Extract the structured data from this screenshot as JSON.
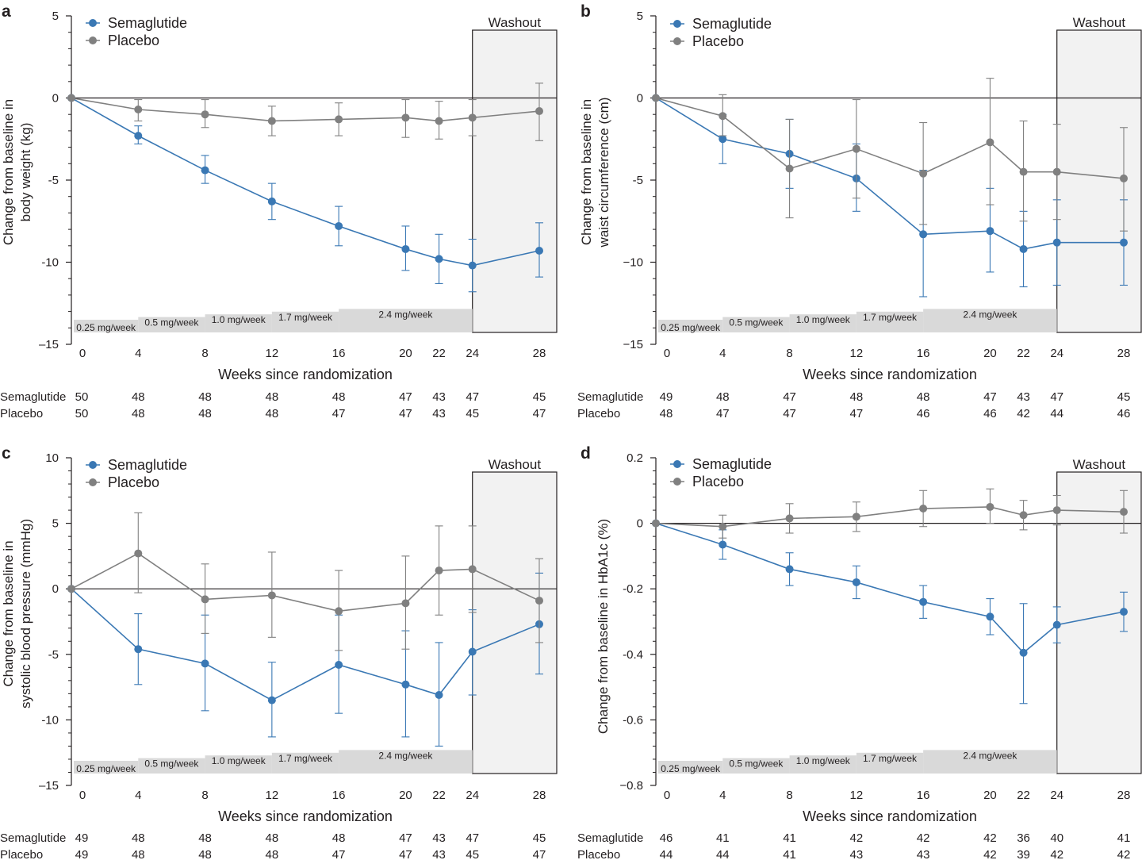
{
  "chart_data": [
    {
      "panel": "a",
      "type": "line",
      "ylabel": [
        "Change from baseline in",
        "body weight (kg)"
      ],
      "xlabel": "Weeks since randomization",
      "ylim": [
        -15,
        5
      ],
      "yticks": [
        5,
        0,
        -5,
        -10,
        -15
      ],
      "ytick_labels": [
        "5",
        "0",
        "-5",
        "-10",
        "–15"
      ],
      "x": [
        0,
        4,
        8,
        12,
        16,
        20,
        22,
        24,
        28
      ],
      "xtick_labels": [
        "0",
        "4",
        "8",
        "12",
        "16",
        "20",
        "22",
        "24",
        "28"
      ],
      "washout_label": "Washout",
      "washout_range": [
        24,
        28
      ],
      "dose_bands": [
        {
          "label": "0.25 mg/week",
          "from": 0,
          "to": 4
        },
        {
          "label": "0.5 mg/week",
          "from": 4,
          "to": 8
        },
        {
          "label": "1.0 mg/week",
          "from": 8,
          "to": 12
        },
        {
          "label": "1.7 mg/week",
          "from": 12,
          "to": 16
        },
        {
          "label": "2.4 mg/week",
          "from": 16,
          "to": 24
        }
      ],
      "series": [
        {
          "name": "Semaglutide",
          "color": "#3a78b4",
          "values": [
            0,
            -2.3,
            -4.4,
            -6.3,
            -7.8,
            -9.2,
            -9.8,
            -10.2,
            -9.3
          ],
          "err_low": [
            0,
            -2.8,
            -5.2,
            -7.4,
            -9.0,
            -10.5,
            -11.3,
            -11.8,
            -10.9
          ],
          "err_high": [
            0,
            -1.7,
            -3.5,
            -5.2,
            -6.6,
            -7.8,
            -8.3,
            -8.6,
            -7.6
          ]
        },
        {
          "name": "Placebo",
          "color": "#808080",
          "values": [
            0,
            -0.7,
            -1.0,
            -1.4,
            -1.3,
            -1.2,
            -1.4,
            -1.2,
            -0.8
          ],
          "err_low": [
            0,
            -1.4,
            -1.8,
            -2.3,
            -2.3,
            -2.4,
            -2.5,
            -2.3,
            -2.6
          ],
          "err_high": [
            0,
            -0.1,
            -0.1,
            -0.5,
            -0.3,
            -0.1,
            -0.2,
            -0.1,
            0.9
          ]
        }
      ],
      "n_at_risk": [
        {
          "label": "Semaglutide",
          "values": [
            "50",
            "48",
            "48",
            "48",
            "48",
            "47",
            "43",
            "47",
            "45"
          ]
        },
        {
          "label": "Placebo",
          "values": [
            "50",
            "48",
            "48",
            "48",
            "47",
            "47",
            "43",
            "45",
            "47"
          ]
        }
      ]
    },
    {
      "panel": "b",
      "type": "line",
      "ylabel": [
        "Change from baseline in",
        "waist circumference (cm)"
      ],
      "xlabel": "Weeks since randomization",
      "ylim": [
        -15,
        5
      ],
      "yticks": [
        5,
        0,
        -5,
        -10,
        -15
      ],
      "ytick_labels": [
        "5",
        "0",
        "-5",
        "−10",
        "−15"
      ],
      "x": [
        0,
        4,
        8,
        12,
        16,
        20,
        22,
        24,
        28
      ],
      "xtick_labels": [
        "0",
        "4",
        "8",
        "12",
        "16",
        "20",
        "22",
        "24",
        "28"
      ],
      "washout_label": "Washout",
      "washout_range": [
        24,
        28
      ],
      "dose_bands": [
        {
          "label": "0.25 mg/week",
          "from": 0,
          "to": 4
        },
        {
          "label": "0.5 mg/week",
          "from": 4,
          "to": 8
        },
        {
          "label": "1.0 mg/week",
          "from": 8,
          "to": 12
        },
        {
          "label": "1.7 mg/week",
          "from": 12,
          "to": 16
        },
        {
          "label": "2.4 mg/week",
          "from": 16,
          "to": 24
        }
      ],
      "series": [
        {
          "name": "Semaglutide",
          "color": "#3a78b4",
          "values": [
            0,
            -2.5,
            -3.4,
            -4.9,
            -8.3,
            -8.1,
            -9.2,
            -8.8,
            -8.8
          ],
          "err_low": [
            0,
            -4.0,
            -5.5,
            -6.9,
            -12.1,
            -10.6,
            -11.5,
            -11.4,
            -11.4
          ],
          "err_high": [
            0,
            -1.0,
            -1.3,
            -2.8,
            -4.4,
            -5.5,
            -6.9,
            -6.2,
            -6.2
          ]
        },
        {
          "name": "Placebo",
          "color": "#808080",
          "values": [
            0,
            -1.1,
            -4.3,
            -3.1,
            -4.6,
            -2.7,
            -4.5,
            -4.5,
            -4.9
          ],
          "err_low": [
            0,
            -2.3,
            -7.3,
            -6.1,
            -7.7,
            -6.5,
            -7.5,
            -7.4,
            -8.1
          ],
          "err_high": [
            0,
            0.2,
            -1.3,
            -0.1,
            -1.5,
            1.2,
            -1.4,
            -1.6,
            -1.8
          ]
        }
      ],
      "n_at_risk": [
        {
          "label": "Semaglutide",
          "values": [
            "49",
            "48",
            "47",
            "48",
            "48",
            "47",
            "43",
            "47",
            "45"
          ]
        },
        {
          "label": "Placebo",
          "values": [
            "48",
            "47",
            "47",
            "47",
            "46",
            "46",
            "42",
            "44",
            "46"
          ]
        }
      ]
    },
    {
      "panel": "c",
      "type": "line",
      "ylabel": [
        "Change from baseline in",
        "systolic blood pressure (mmHg)"
      ],
      "xlabel": "Weeks since randomization",
      "ylim": [
        -15,
        10
      ],
      "yticks": [
        10,
        5,
        0,
        -5,
        -10,
        -15
      ],
      "ytick_labels": [
        "10",
        "5",
        "0",
        "-5",
        "-10",
        "–15"
      ],
      "x": [
        0,
        4,
        8,
        12,
        16,
        20,
        22,
        24,
        28
      ],
      "xtick_labels": [
        "0",
        "4",
        "8",
        "12",
        "16",
        "20",
        "22",
        "24",
        "28"
      ],
      "washout_label": "Washout",
      "washout_range": [
        24,
        28
      ],
      "dose_bands": [
        {
          "label": "0.25 mg/week",
          "from": 0,
          "to": 4
        },
        {
          "label": "0.5 mg/week",
          "from": 4,
          "to": 8
        },
        {
          "label": "1.0 mg/week",
          "from": 8,
          "to": 12
        },
        {
          "label": "1.7 mg/week",
          "from": 12,
          "to": 16
        },
        {
          "label": "2.4 mg/week",
          "from": 16,
          "to": 24
        }
      ],
      "series": [
        {
          "name": "Semaglutide",
          "color": "#3a78b4",
          "values": [
            0,
            -4.6,
            -5.7,
            -8.5,
            -5.8,
            -7.3,
            -8.1,
            -4.8,
            -2.7
          ],
          "err_low": [
            0,
            -7.3,
            -9.3,
            -11.3,
            -9.5,
            -11.3,
            -12.0,
            -8.1,
            -6.5
          ],
          "err_high": [
            0,
            -1.9,
            -2.0,
            -5.6,
            -2.0,
            -3.2,
            -4.1,
            -1.6,
            1.2
          ]
        },
        {
          "name": "Placebo",
          "color": "#808080",
          "values": [
            0,
            2.7,
            -0.8,
            -0.5,
            -1.7,
            -1.1,
            1.4,
            1.5,
            -0.9
          ],
          "err_low": [
            0,
            -0.3,
            -3.4,
            -3.7,
            -4.7,
            -4.6,
            -2.0,
            -1.8,
            -4.1
          ],
          "err_high": [
            0,
            5.8,
            1.9,
            2.8,
            1.4,
            2.5,
            4.8,
            4.8,
            2.3
          ]
        }
      ],
      "n_at_risk": [
        {
          "label": "Semaglutide",
          "values": [
            "49",
            "48",
            "48",
            "48",
            "48",
            "47",
            "43",
            "47",
            "45"
          ]
        },
        {
          "label": "Placebo",
          "values": [
            "49",
            "48",
            "48",
            "48",
            "47",
            "47",
            "43",
            "45",
            "47"
          ]
        }
      ]
    },
    {
      "panel": "d",
      "type": "line",
      "ylabel": [
        "Change from baseline in HbA1c (%)"
      ],
      "xlabel": "Weeks since randomization",
      "ylim": [
        -0.8,
        0.2
      ],
      "yticks": [
        0.2,
        0,
        -0.2,
        -0.4,
        -0.6,
        -0.8
      ],
      "ytick_labels": [
        "0.2",
        "0",
        "-0.2",
        "-0.4",
        "-0.6",
        "−0.8"
      ],
      "x": [
        0,
        4,
        8,
        12,
        16,
        20,
        22,
        24,
        28
      ],
      "xtick_labels": [
        "0",
        "4",
        "8",
        "12",
        "16",
        "20",
        "22",
        "24",
        "28"
      ],
      "washout_label": "Washout",
      "washout_range": [
        24,
        28
      ],
      "dose_bands": [
        {
          "label": "0.25 mg/week",
          "from": 0,
          "to": 4
        },
        {
          "label": "0.5 mg/week",
          "from": 4,
          "to": 8
        },
        {
          "label": "1.0 mg/week",
          "from": 8,
          "to": 12
        },
        {
          "label": "1.7 mg/week",
          "from": 12,
          "to": 16
        },
        {
          "label": "2.4 mg/week",
          "from": 16,
          "to": 24
        }
      ],
      "series": [
        {
          "name": "Semaglutide",
          "color": "#3a78b4",
          "values": [
            0,
            -0.065,
            -0.14,
            -0.18,
            -0.24,
            -0.285,
            -0.395,
            -0.31,
            -0.27
          ],
          "err_low": [
            0,
            -0.11,
            -0.19,
            -0.23,
            -0.29,
            -0.34,
            -0.55,
            -0.365,
            -0.33
          ],
          "err_high": [
            0,
            -0.02,
            -0.09,
            -0.13,
            -0.19,
            -0.23,
            -0.245,
            -0.255,
            -0.21
          ]
        },
        {
          "name": "Placebo",
          "color": "#808080",
          "values": [
            0,
            -0.01,
            0.015,
            0.02,
            0.045,
            0.05,
            0.025,
            0.04,
            0.035
          ],
          "err_low": [
            0,
            -0.045,
            -0.03,
            -0.025,
            -0.01,
            0,
            -0.02,
            -0.005,
            -0.03
          ],
          "err_high": [
            0,
            0.025,
            0.06,
            0.065,
            0.1,
            0.105,
            0.07,
            0.085,
            0.1
          ]
        }
      ],
      "n_at_risk": [
        {
          "label": "Semaglutide",
          "values": [
            "46",
            "41",
            "41",
            "42",
            "42",
            "42",
            "36",
            "40",
            "41"
          ]
        },
        {
          "label": "Placebo",
          "values": [
            "44",
            "44",
            "41",
            "43",
            "43",
            "42",
            "39",
            "42",
            "42"
          ]
        }
      ]
    }
  ]
}
